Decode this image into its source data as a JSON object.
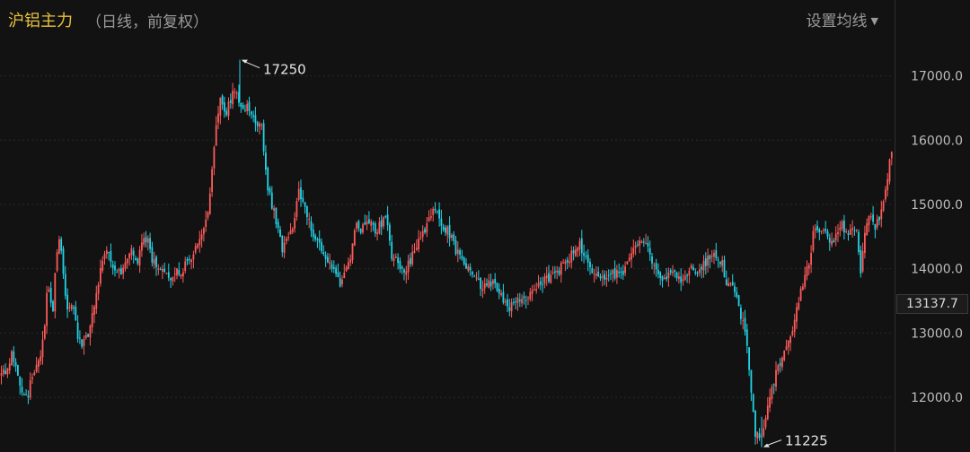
{
  "header": {
    "title": "沪铝主力",
    "subtitle": "（日线，前复权）",
    "ma_setting_label": "设置均线"
  },
  "last_price": "13137.7",
  "colors": {
    "up": "#ff5a5a",
    "down": "#22d3e6",
    "grid": "#2a2a2a",
    "background": "#121212"
  },
  "chart_data": {
    "type": "candlestick",
    "title": "沪铝主力",
    "ylim": [
      11150,
      17650
    ],
    "y_ticks": [
      {
        "value": 12000,
        "label": "12000.0"
      },
      {
        "value": 13000,
        "label": "13000.0"
      },
      {
        "value": 14000,
        "label": "14000.0"
      },
      {
        "value": 15000,
        "label": "15000.0"
      },
      {
        "value": 16000,
        "label": "16000.0"
      },
      {
        "value": 17000,
        "label": "17000.0"
      }
    ],
    "grid": true,
    "annotations": [
      {
        "label": "17250",
        "value": 17250,
        "kind": "high"
      },
      {
        "label": "11225",
        "value": 11225,
        "kind": "low"
      }
    ],
    "close_path": [
      [
        0,
        12300
      ],
      [
        8,
        12450
      ],
      [
        12,
        12700
      ],
      [
        18,
        12400
      ],
      [
        25,
        12000
      ],
      [
        30,
        11950
      ],
      [
        36,
        12400
      ],
      [
        44,
        12600
      ],
      [
        48,
        12900
      ],
      [
        53,
        13800
      ],
      [
        58,
        13300
      ],
      [
        62,
        14200
      ],
      [
        66,
        14500
      ],
      [
        70,
        13900
      ],
      [
        75,
        13300
      ],
      [
        80,
        13500
      ],
      [
        86,
        12950
      ],
      [
        92,
        12800
      ],
      [
        100,
        13100
      ],
      [
        106,
        13600
      ],
      [
        112,
        14000
      ],
      [
        118,
        14300
      ],
      [
        124,
        14100
      ],
      [
        130,
        13900
      ],
      [
        138,
        14000
      ],
      [
        146,
        14300
      ],
      [
        152,
        14100
      ],
      [
        158,
        14400
      ],
      [
        163,
        14500
      ],
      [
        168,
        14200
      ],
      [
        175,
        13950
      ],
      [
        182,
        14050
      ],
      [
        188,
        13850
      ],
      [
        196,
        13950
      ],
      [
        204,
        14000
      ],
      [
        212,
        14200
      ],
      [
        220,
        14400
      ],
      [
        226,
        14600
      ],
      [
        232,
        14900
      ],
      [
        237,
        15800
      ],
      [
        241,
        16300
      ],
      [
        245,
        16700
      ],
      [
        250,
        16400
      ],
      [
        255,
        16600
      ],
      [
        262,
        16800
      ],
      [
        268,
        16500
      ],
      [
        274,
        16500
      ],
      [
        280,
        16400
      ],
      [
        286,
        16300
      ],
      [
        291,
        16200
      ],
      [
        296,
        15400
      ],
      [
        302,
        15000
      ],
      [
        308,
        14700
      ],
      [
        314,
        14300
      ],
      [
        320,
        14500
      ],
      [
        326,
        14700
      ],
      [
        332,
        15300
      ],
      [
        336,
        15000
      ],
      [
        342,
        14800
      ],
      [
        348,
        14500
      ],
      [
        354,
        14400
      ],
      [
        360,
        14200
      ],
      [
        366,
        14100
      ],
      [
        372,
        14000
      ],
      [
        378,
        13800
      ],
      [
        384,
        13900
      ],
      [
        390,
        14200
      ],
      [
        396,
        14700
      ],
      [
        400,
        14500
      ],
      [
        406,
        14700
      ],
      [
        412,
        14800
      ],
      [
        418,
        14600
      ],
      [
        424,
        14700
      ],
      [
        430,
        14800
      ],
      [
        436,
        14200
      ],
      [
        444,
        14050
      ],
      [
        452,
        14000
      ],
      [
        458,
        14200
      ],
      [
        464,
        14400
      ],
      [
        470,
        14600
      ],
      [
        476,
        14700
      ],
      [
        482,
        15000
      ],
      [
        488,
        14800
      ],
      [
        494,
        14650
      ],
      [
        500,
        14550
      ],
      [
        506,
        14300
      ],
      [
        512,
        14200
      ],
      [
        518,
        14050
      ],
      [
        524,
        14000
      ],
      [
        530,
        13850
      ],
      [
        536,
        13700
      ],
      [
        542,
        13750
      ],
      [
        548,
        13800
      ],
      [
        554,
        13650
      ],
      [
        560,
        13500
      ],
      [
        566,
        13400
      ],
      [
        572,
        13450
      ],
      [
        578,
        13500
      ],
      [
        584,
        13550
      ],
      [
        590,
        13600
      ],
      [
        596,
        13750
      ],
      [
        602,
        13800
      ],
      [
        608,
        13850
      ],
      [
        614,
        13900
      ],
      [
        620,
        13950
      ],
      [
        626,
        14050
      ],
      [
        632,
        14150
      ],
      [
        638,
        14250
      ],
      [
        644,
        14400
      ],
      [
        650,
        14200
      ],
      [
        656,
        14050
      ],
      [
        662,
        13950
      ],
      [
        668,
        13850
      ],
      [
        674,
        13800
      ],
      [
        680,
        13900
      ],
      [
        686,
        13900
      ],
      [
        692,
        13950
      ],
      [
        698,
        14050
      ],
      [
        704,
        14300
      ],
      [
        710,
        14400
      ],
      [
        716,
        14350
      ],
      [
        722,
        14300
      ],
      [
        728,
        14050
      ],
      [
        734,
        13850
      ],
      [
        740,
        13850
      ],
      [
        746,
        13900
      ],
      [
        752,
        13950
      ],
      [
        758,
        13850
      ],
      [
        764,
        13900
      ],
      [
        770,
        14000
      ],
      [
        776,
        13950
      ],
      [
        782,
        14050
      ],
      [
        788,
        14150
      ],
      [
        794,
        14200
      ],
      [
        800,
        14150
      ],
      [
        804,
        14100
      ],
      [
        808,
        13700
      ],
      [
        814,
        13750
      ],
      [
        820,
        13500
      ],
      [
        826,
        13200
      ],
      [
        832,
        12800
      ],
      [
        836,
        12000
      ],
      [
        840,
        11450
      ],
      [
        846,
        11350
      ],
      [
        852,
        11700
      ],
      [
        858,
        12100
      ],
      [
        864,
        12400
      ],
      [
        870,
        12550
      ],
      [
        876,
        12800
      ],
      [
        882,
        13100
      ],
      [
        888,
        13450
      ],
      [
        894,
        13800
      ],
      [
        900,
        14100
      ],
      [
        906,
        14600
      ],
      [
        912,
        14500
      ],
      [
        918,
        14550
      ],
      [
        924,
        14400
      ],
      [
        930,
        14500
      ],
      [
        936,
        14750
      ],
      [
        942,
        14550
      ],
      [
        948,
        14650
      ],
      [
        954,
        14600
      ],
      [
        958,
        13900
      ],
      [
        962,
        14500
      ],
      [
        966,
        14750
      ],
      [
        970,
        14800
      ],
      [
        974,
        14650
      ],
      [
        978,
        14750
      ],
      [
        982,
        14900
      ],
      [
        986,
        15200
      ],
      [
        990,
        15650
      ],
      [
        993,
        15950
      ]
    ]
  }
}
